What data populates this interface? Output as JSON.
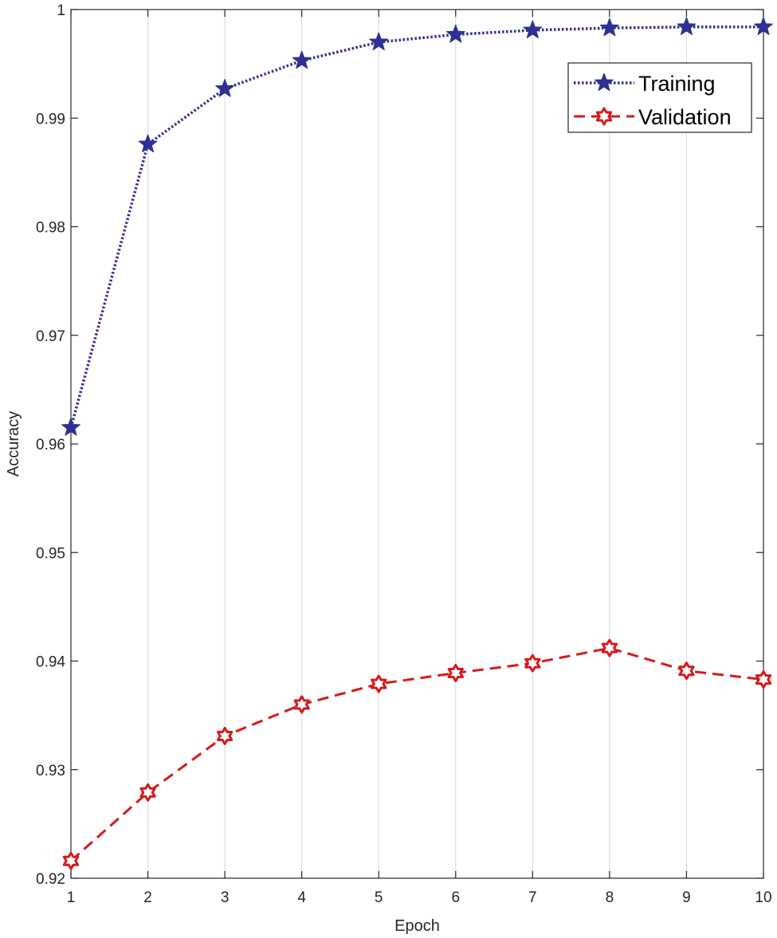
{
  "chart_data": {
    "type": "line",
    "title": "",
    "xlabel": "Epoch",
    "ylabel": "Accuracy",
    "x": [
      1,
      2,
      3,
      4,
      5,
      6,
      7,
      8,
      9,
      10
    ],
    "xlim": [
      1,
      10
    ],
    "ylim": [
      0.92,
      1.0
    ],
    "xticks": [
      "1",
      "2",
      "3",
      "4",
      "5",
      "6",
      "7",
      "8",
      "9",
      "10"
    ],
    "yticks": [
      {
        "value": 0.92,
        "label": "0.92"
      },
      {
        "value": 0.93,
        "label": "0.93"
      },
      {
        "value": 0.94,
        "label": "0.94"
      },
      {
        "value": 0.95,
        "label": "0.95"
      },
      {
        "value": 0.96,
        "label": "0.96"
      },
      {
        "value": 0.97,
        "label": "0.97"
      },
      {
        "value": 0.98,
        "label": "0.98"
      },
      {
        "value": 0.99,
        "label": "0.99"
      },
      {
        "value": 1.0,
        "label": "1"
      }
    ],
    "grid": "vertical",
    "legend_position": "top-right",
    "series": [
      {
        "name": "Training",
        "color": "#2e3192",
        "style": "dotted",
        "marker": "star",
        "values": [
          0.9615,
          0.9876,
          0.9927,
          0.9953,
          0.997,
          0.9977,
          0.9981,
          0.9983,
          0.9984,
          0.9984
        ]
      },
      {
        "name": "Validation",
        "color": "#d7191c",
        "style": "dashed",
        "marker": "hexagram",
        "values": [
          0.9216,
          0.9279,
          0.9331,
          0.936,
          0.9379,
          0.9389,
          0.9398,
          0.9412,
          0.9391,
          0.9383
        ]
      }
    ]
  }
}
